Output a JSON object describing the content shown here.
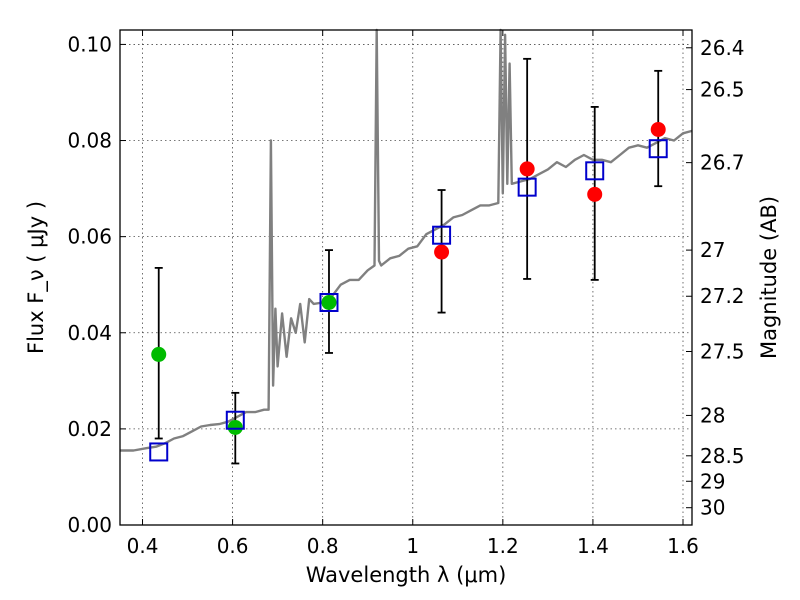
{
  "chart_data": {
    "type": "scatter",
    "xlabel": "Wavelength  λ (μm)",
    "ylabel": "Flux  F_ν  ( μJy )",
    "ylabel_right": "Magnitude (AB)",
    "xlim": [
      0.35,
      1.62
    ],
    "ylim": [
      0.0,
      0.103
    ],
    "grid": true,
    "x_ticks": [
      0.4,
      0.6,
      0.8,
      1.0,
      1.2,
      1.4,
      1.6
    ],
    "x_tick_labels": [
      "0.4",
      "0.6",
      "0.8",
      "1",
      "1.2",
      "1.4",
      "1.6"
    ],
    "y_ticks": [
      0.0,
      0.02,
      0.04,
      0.06,
      0.08,
      0.1
    ],
    "y_tick_labels": [
      "0.00",
      "0.02",
      "0.04",
      "0.06",
      "0.08",
      "0.10"
    ],
    "right_ticks": [
      {
        "label": "26.4",
        "flux": 0.0993
      },
      {
        "label": "26.5",
        "flux": 0.0906
      },
      {
        "label": "26.7",
        "flux": 0.0754
      },
      {
        "label": "27",
        "flux": 0.0572
      },
      {
        "label": "27.2",
        "flux": 0.0476
      },
      {
        "label": "27.5",
        "flux": 0.0361
      },
      {
        "label": "28",
        "flux": 0.0228
      },
      {
        "label": "28.5",
        "flux": 0.0144
      },
      {
        "label": "29",
        "flux": 0.0091
      },
      {
        "label": "30",
        "flux": 0.0036
      }
    ],
    "series": [
      {
        "kind": "model-spectrum",
        "color": "#808080",
        "x": [
          0.35,
          0.38,
          0.41,
          0.43,
          0.45,
          0.47,
          0.49,
          0.51,
          0.53,
          0.55,
          0.57,
          0.59,
          0.61,
          0.63,
          0.65,
          0.67,
          0.68,
          0.685,
          0.69,
          0.695,
          0.7,
          0.71,
          0.72,
          0.73,
          0.74,
          0.75,
          0.76,
          0.77,
          0.78,
          0.8,
          0.82,
          0.84,
          0.86,
          0.88,
          0.9,
          0.915,
          0.92,
          0.925,
          0.93,
          0.95,
          0.97,
          0.99,
          1.01,
          1.03,
          1.05,
          1.07,
          1.09,
          1.11,
          1.13,
          1.15,
          1.17,
          1.19,
          1.195,
          1.2,
          1.205,
          1.21,
          1.215,
          1.22,
          1.24,
          1.26,
          1.28,
          1.3,
          1.32,
          1.34,
          1.36,
          1.38,
          1.4,
          1.42,
          1.44,
          1.46,
          1.48,
          1.5,
          1.52,
          1.54,
          1.56,
          1.58,
          1.6,
          1.62
        ],
        "y": [
          0.0155,
          0.0155,
          0.016,
          0.0163,
          0.017,
          0.018,
          0.0185,
          0.0195,
          0.0205,
          0.0208,
          0.021,
          0.0215,
          0.0225,
          0.0235,
          0.0235,
          0.024,
          0.024,
          0.08,
          0.029,
          0.045,
          0.033,
          0.044,
          0.035,
          0.043,
          0.04,
          0.046,
          0.038,
          0.047,
          0.046,
          0.0463,
          0.0475,
          0.05,
          0.051,
          0.051,
          0.053,
          0.054,
          0.11,
          0.055,
          0.054,
          0.0555,
          0.056,
          0.0575,
          0.058,
          0.0605,
          0.0615,
          0.0625,
          0.064,
          0.0645,
          0.0655,
          0.0665,
          0.0665,
          0.067,
          0.11,
          0.069,
          0.102,
          0.071,
          0.096,
          0.071,
          0.0715,
          0.072,
          0.073,
          0.074,
          0.0755,
          0.0745,
          0.076,
          0.077,
          0.076,
          0.076,
          0.0755,
          0.077,
          0.0785,
          0.079,
          0.0785,
          0.0795,
          0.0805,
          0.08,
          0.0815,
          0.082
        ]
      },
      {
        "kind": "errorbars",
        "color": "#000000",
        "points": [
          {
            "x": 0.436,
            "low": 0.018,
            "high": 0.0535
          },
          {
            "x": 0.606,
            "low": 0.0128,
            "high": 0.0275
          },
          {
            "x": 0.814,
            "low": 0.0358,
            "high": 0.0572
          },
          {
            "x": 1.064,
            "low": 0.0442,
            "high": 0.0697
          },
          {
            "x": 1.254,
            "low": 0.0512,
            "high": 0.097
          },
          {
            "x": 1.404,
            "low": 0.051,
            "high": 0.087
          },
          {
            "x": 1.545,
            "low": 0.0705,
            "high": 0.0945
          }
        ]
      },
      {
        "kind": "markers-green",
        "color": "#00bb00",
        "x": [
          0.436,
          0.606,
          0.814
        ],
        "y": [
          0.0355,
          0.0203,
          0.0463
        ]
      },
      {
        "kind": "markers-red",
        "color": "#ff0000",
        "x": [
          1.064,
          1.254,
          1.404,
          1.545
        ],
        "y": [
          0.0568,
          0.0741,
          0.0688,
          0.0823
        ]
      },
      {
        "kind": "model-squares",
        "color": "#0000cc",
        "x": [
          0.436,
          0.606,
          0.814,
          1.064,
          1.254,
          1.404,
          1.545
        ],
        "y": [
          0.0152,
          0.0218,
          0.0463,
          0.0603,
          0.0703,
          0.0737,
          0.0783
        ]
      }
    ]
  }
}
